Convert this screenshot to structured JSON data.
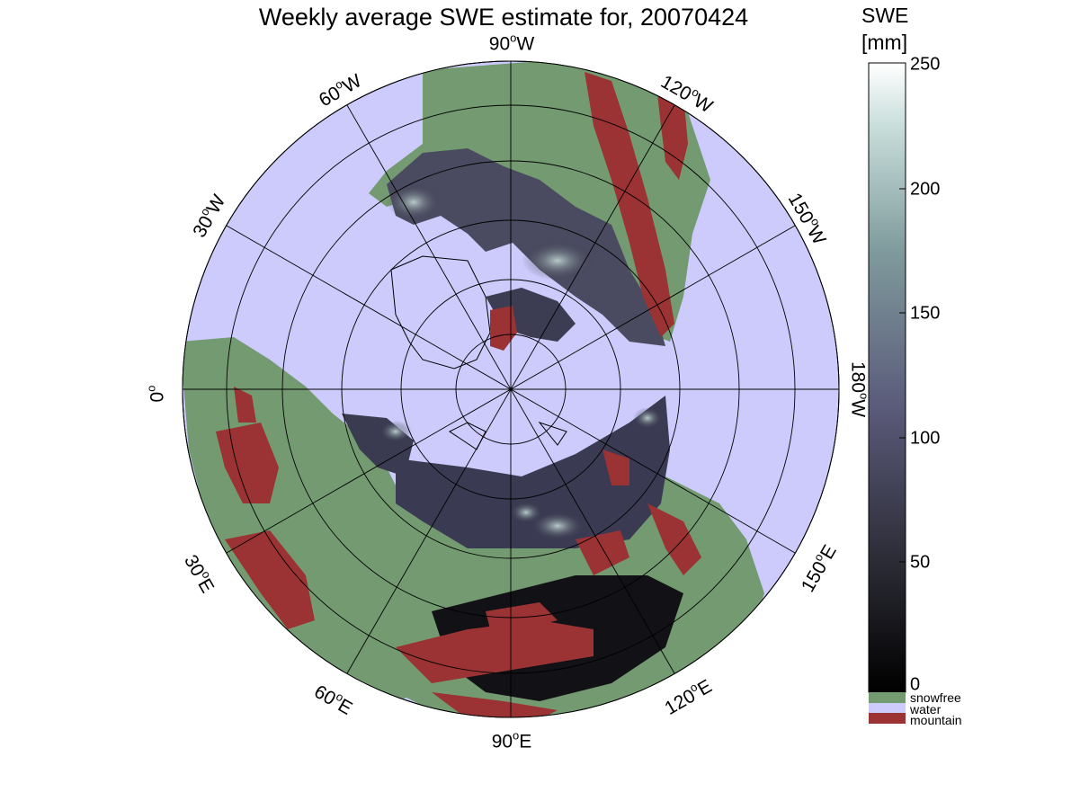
{
  "title": "Weekly average SWE estimate for, 20070424",
  "longitude_labels": [
    {
      "id": "90w",
      "deg": "90",
      "hem": "W"
    },
    {
      "id": "120w",
      "deg": "120",
      "hem": "W"
    },
    {
      "id": "150w",
      "deg": "150",
      "hem": "W"
    },
    {
      "id": "180w",
      "deg": "180",
      "hem": "W"
    },
    {
      "id": "150e",
      "deg": "150",
      "hem": "E"
    },
    {
      "id": "120e",
      "deg": "120",
      "hem": "E"
    },
    {
      "id": "90e",
      "deg": "90",
      "hem": "E"
    },
    {
      "id": "60e",
      "deg": "60",
      "hem": "E"
    },
    {
      "id": "30e",
      "deg": "30",
      "hem": "E"
    },
    {
      "id": "0",
      "deg": "0",
      "hem": ""
    },
    {
      "id": "30w",
      "deg": "30",
      "hem": "W"
    },
    {
      "id": "60w",
      "deg": "60",
      "hem": "W"
    }
  ],
  "colorbar": {
    "title_line1": "SWE",
    "title_line2": "[mm]",
    "ticks": [
      "250",
      "200",
      "150",
      "100",
      "50",
      "0"
    ],
    "range": [
      0,
      250
    ],
    "categories": [
      {
        "label": "snowfree",
        "color": "#739a70"
      },
      {
        "label": "water",
        "color": "#cccbfc"
      },
      {
        "label": "mountain",
        "color": "#9b3233"
      }
    ]
  },
  "colors": {
    "water": "#cccbfc",
    "land_snowfree": "#739a70",
    "mountain": "#9b3233",
    "swe_low": "#0a0a0c",
    "swe_mid": "#5a5a7a",
    "swe_high": "#f4fbf9"
  }
}
